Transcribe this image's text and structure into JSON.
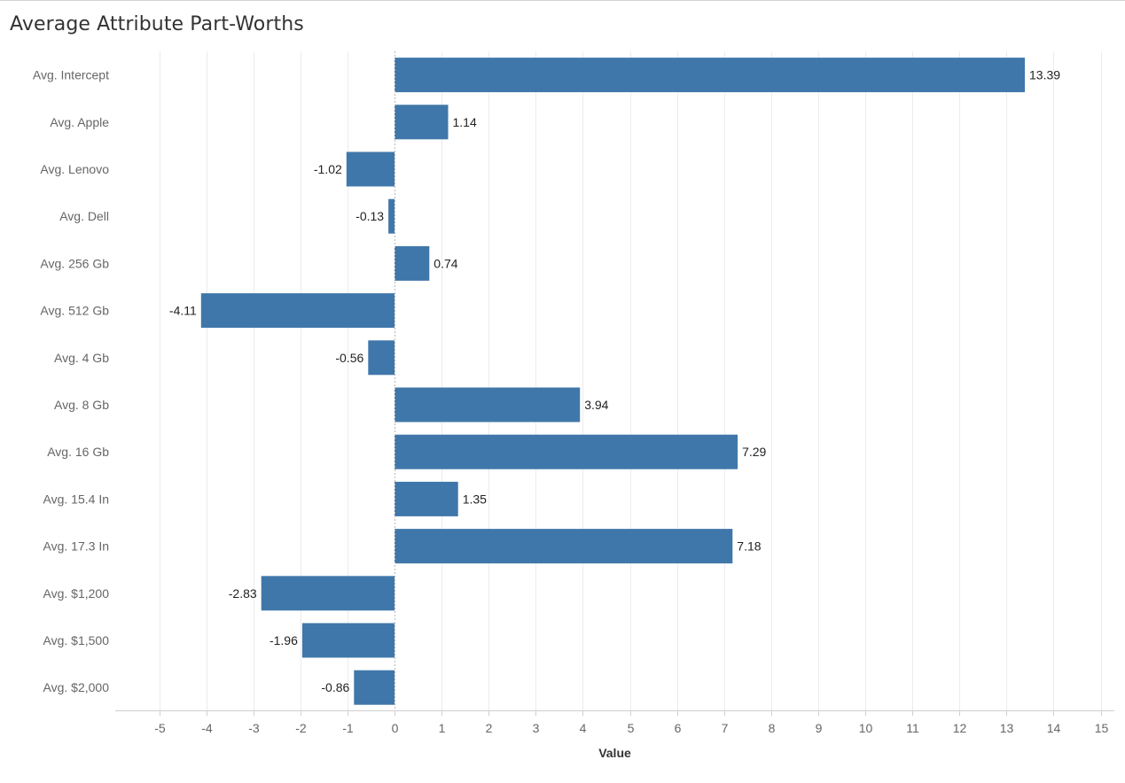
{
  "chart_data": {
    "type": "bar",
    "orientation": "horizontal",
    "title": "Average Attribute Part-Worths",
    "xlabel": "Value",
    "ylabel": "",
    "categories": [
      "Avg. Intercept",
      "Avg. Apple",
      "Avg. Lenovo",
      "Avg. Dell",
      "Avg. 256 Gb",
      "Avg. 512 Gb",
      "Avg. 4 Gb",
      "Avg. 8 Gb",
      "Avg. 16 Gb",
      "Avg. 15.4 In",
      "Avg. 17.3 In",
      "Avg. $1,200",
      "Avg. $1,500",
      "Avg. $2,000"
    ],
    "values": [
      13.39,
      1.14,
      -1.02,
      -0.13,
      0.74,
      -4.11,
      -0.56,
      3.94,
      7.29,
      1.35,
      7.18,
      -2.83,
      -1.96,
      -0.86
    ],
    "data_labels": [
      "13.39",
      "1.14",
      "-1.02",
      "-0.13",
      "0.74",
      "-4.11",
      "-0.56",
      "3.94",
      "7.29",
      "1.35",
      "7.18",
      "-2.83",
      "-1.96",
      "-0.86"
    ],
    "xlim": [
      -6,
      15.2
    ],
    "xticks": [
      -5,
      -4,
      -3,
      -2,
      -1,
      0,
      1,
      2,
      3,
      4,
      5,
      6,
      7,
      8,
      9,
      10,
      11,
      12,
      13,
      14,
      15
    ],
    "xtick_labels": [
      "-5",
      "-4",
      "-3",
      "-2",
      "-1",
      "0",
      "1",
      "2",
      "3",
      "4",
      "5",
      "6",
      "7",
      "8",
      "9",
      "10",
      "11",
      "12",
      "13",
      "14",
      "15"
    ],
    "grid": "vertical",
    "zero_line": "dashed",
    "legend": "none",
    "bar_color": "#4077aa",
    "grid_color": "#ececec",
    "zero_line_color": "#b9b9b9"
  }
}
